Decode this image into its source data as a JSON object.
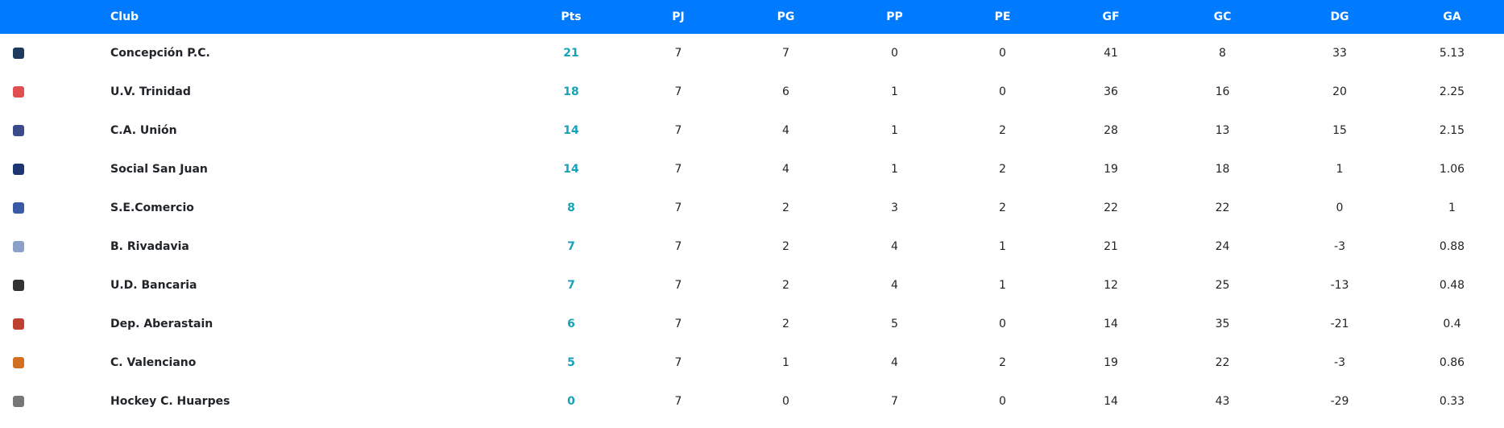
{
  "headers": [
    "",
    "Club",
    "Pts",
    "PJ",
    "PG",
    "PP",
    "PE",
    "GF",
    "GC",
    "DG",
    "GA"
  ],
  "accent": "#007bff",
  "points_color": "#17a2b8",
  "rows": [
    {
      "logo": "concepcion-logo",
      "logo_color": "#1f3a5f",
      "club": "Concepción P.C.",
      "pts": "21",
      "pj": "7",
      "pg": "7",
      "pp": "0",
      "pe": "0",
      "gf": "41",
      "gc": "8",
      "dg": "33",
      "ga": "5.13"
    },
    {
      "logo": "trinidad-logo",
      "logo_color": "#e05050",
      "club": "U.V. Trinidad",
      "pts": "18",
      "pj": "7",
      "pg": "6",
      "pp": "1",
      "pe": "0",
      "gf": "36",
      "gc": "16",
      "dg": "20",
      "ga": "2.25"
    },
    {
      "logo": "union-logo",
      "logo_color": "#3a4a8a",
      "club": "C.A. Unión",
      "pts": "14",
      "pj": "7",
      "pg": "4",
      "pp": "1",
      "pe": "2",
      "gf": "28",
      "gc": "13",
      "dg": "15",
      "ga": "2.15"
    },
    {
      "logo": "san-juan-logo",
      "logo_color": "#1d3570",
      "club": "Social San Juan",
      "pts": "14",
      "pj": "7",
      "pg": "4",
      "pp": "1",
      "pe": "2",
      "gf": "19",
      "gc": "18",
      "dg": "1",
      "ga": "1.06"
    },
    {
      "logo": "comercio-logo",
      "logo_color": "#3a5aa8",
      "club": "S.E.Comercio",
      "pts": "8",
      "pj": "7",
      "pg": "2",
      "pp": "3",
      "pe": "2",
      "gf": "22",
      "gc": "22",
      "dg": "0",
      "ga": "1"
    },
    {
      "logo": "rivadavia-logo",
      "logo_color": "#8aa0c8",
      "club": "B. Rivadavia",
      "pts": "7",
      "pj": "7",
      "pg": "2",
      "pp": "4",
      "pe": "1",
      "gf": "21",
      "gc": "24",
      "dg": "-3",
      "ga": "0.88"
    },
    {
      "logo": "bancaria-logo",
      "logo_color": "#333333",
      "club": "U.D. Bancaria",
      "pts": "7",
      "pj": "7",
      "pg": "2",
      "pp": "4",
      "pe": "1",
      "gf": "12",
      "gc": "25",
      "dg": "-13",
      "ga": "0.48"
    },
    {
      "logo": "aberastain-logo",
      "logo_color": "#c04030",
      "club": "Dep. Aberastain",
      "pts": "6",
      "pj": "7",
      "pg": "2",
      "pp": "5",
      "pe": "0",
      "gf": "14",
      "gc": "35",
      "dg": "-21",
      "ga": "0.4"
    },
    {
      "logo": "valenciano-logo",
      "logo_color": "#d07020",
      "club": "C. Valenciano",
      "pts": "5",
      "pj": "7",
      "pg": "1",
      "pp": "4",
      "pe": "2",
      "gf": "19",
      "gc": "22",
      "dg": "-3",
      "ga": "0.86"
    },
    {
      "logo": "huarpes-logo",
      "logo_color": "#777777",
      "club": "Hockey C. Huarpes",
      "pts": "0",
      "pj": "7",
      "pg": "0",
      "pp": "7",
      "pe": "0",
      "gf": "14",
      "gc": "43",
      "dg": "-29",
      "ga": "0.33"
    }
  ]
}
